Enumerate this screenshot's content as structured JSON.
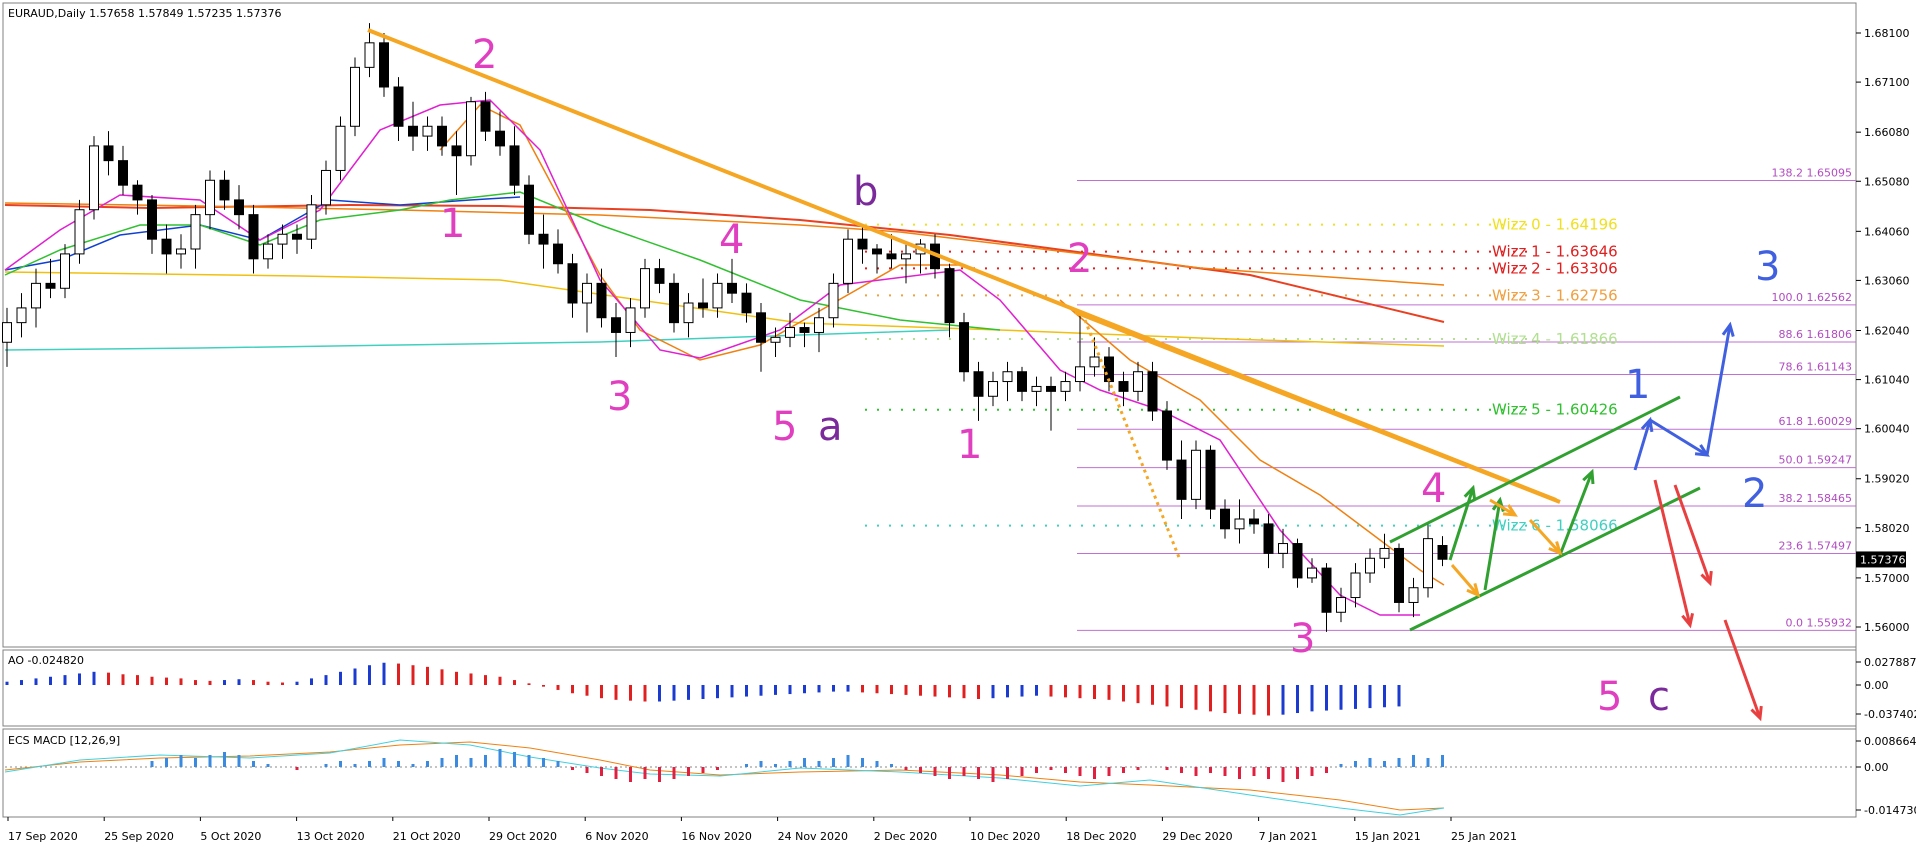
{
  "chart_data": {
    "type": "candlestick",
    "title": "EURAUD,Daily",
    "ohlc_header": "1.57658 1.57849 1.57235 1.57376",
    "last_price": "1.57376",
    "price_ticks": [
      "1.68100",
      "1.67100",
      "1.66080",
      "1.65080",
      "1.64060",
      "1.63060",
      "1.62040",
      "1.61040",
      "1.60040",
      "1.59020",
      "1.58020",
      "1.57000",
      "1.56000"
    ],
    "date_ticks": [
      "17 Sep 2020",
      "25 Sep 2020",
      "5 Oct 2020",
      "13 Oct 2020",
      "21 Oct 2020",
      "29 Oct 2020",
      "6 Nov 2020",
      "16 Nov 2020",
      "24 Nov 2020",
      "2 Dec 2020",
      "10 Dec 2020",
      "18 Dec 2020",
      "29 Dec 2020",
      "7 Jan 2021",
      "15 Jan 2021",
      "25 Jan 2021"
    ],
    "candles": [
      [
        1.618,
        1.625,
        1.613,
        1.622
      ],
      [
        1.622,
        1.628,
        1.619,
        1.625
      ],
      [
        1.625,
        1.633,
        1.621,
        1.63
      ],
      [
        1.63,
        1.635,
        1.627,
        1.629
      ],
      [
        1.629,
        1.638,
        1.627,
        1.636
      ],
      [
        1.636,
        1.647,
        1.634,
        1.645
      ],
      [
        1.645,
        1.66,
        1.643,
        1.658
      ],
      [
        1.658,
        1.661,
        1.652,
        1.655
      ],
      [
        1.655,
        1.658,
        1.648,
        1.65
      ],
      [
        1.65,
        1.651,
        1.644,
        1.647
      ],
      [
        1.647,
        1.648,
        1.636,
        1.639
      ],
      [
        1.639,
        1.642,
        1.632,
        1.636
      ],
      [
        1.636,
        1.64,
        1.633,
        1.637
      ],
      [
        1.637,
        1.646,
        1.633,
        1.644
      ],
      [
        1.644,
        1.653,
        1.641,
        1.651
      ],
      [
        1.651,
        1.653,
        1.645,
        1.647
      ],
      [
        1.647,
        1.65,
        1.641,
        1.644
      ],
      [
        1.644,
        1.646,
        1.632,
        1.635
      ],
      [
        1.635,
        1.64,
        1.633,
        1.638
      ],
      [
        1.638,
        1.642,
        1.635,
        1.64
      ],
      [
        1.64,
        1.642,
        1.636,
        1.639
      ],
      [
        1.639,
        1.648,
        1.637,
        1.646
      ],
      [
        1.646,
        1.655,
        1.644,
        1.653
      ],
      [
        1.653,
        1.664,
        1.651,
        1.662
      ],
      [
        1.662,
        1.676,
        1.66,
        1.674
      ],
      [
        1.674,
        1.683,
        1.672,
        1.679
      ],
      [
        1.679,
        1.681,
        1.668,
        1.67
      ],
      [
        1.67,
        1.672,
        1.659,
        1.662
      ],
      [
        1.662,
        1.667,
        1.657,
        1.66
      ],
      [
        1.66,
        1.664,
        1.657,
        1.662
      ],
      [
        1.662,
        1.664,
        1.656,
        1.658
      ],
      [
        1.658,
        1.661,
        1.648,
        1.656
      ],
      [
        1.656,
        1.668,
        1.654,
        1.667
      ],
      [
        1.667,
        1.669,
        1.659,
        1.661
      ],
      [
        1.661,
        1.665,
        1.656,
        1.658
      ],
      [
        1.658,
        1.662,
        1.648,
        1.65
      ],
      [
        1.65,
        1.652,
        1.638,
        1.64
      ],
      [
        1.64,
        1.644,
        1.633,
        1.638
      ],
      [
        1.638,
        1.641,
        1.632,
        1.634
      ],
      [
        1.634,
        1.636,
        1.623,
        1.626
      ],
      [
        1.626,
        1.632,
        1.62,
        1.63
      ],
      [
        1.63,
        1.633,
        1.621,
        1.623
      ],
      [
        1.623,
        1.626,
        1.615,
        1.62
      ],
      [
        1.62,
        1.627,
        1.617,
        1.625
      ],
      [
        1.625,
        1.635,
        1.623,
        1.633
      ],
      [
        1.633,
        1.635,
        1.628,
        1.63
      ],
      [
        1.63,
        1.632,
        1.62,
        1.622
      ],
      [
        1.622,
        1.628,
        1.619,
        1.626
      ],
      [
        1.626,
        1.631,
        1.623,
        1.625
      ],
      [
        1.625,
        1.632,
        1.623,
        1.63
      ],
      [
        1.63,
        1.635,
        1.626,
        1.628
      ],
      [
        1.628,
        1.63,
        1.622,
        1.624
      ],
      [
        1.624,
        1.626,
        1.612,
        1.618
      ],
      [
        1.618,
        1.621,
        1.615,
        1.619
      ],
      [
        1.619,
        1.624,
        1.617,
        1.621
      ],
      [
        1.621,
        1.622,
        1.617,
        1.62
      ],
      [
        1.62,
        1.625,
        1.616,
        1.623
      ],
      [
        1.623,
        1.632,
        1.621,
        1.63
      ],
      [
        1.63,
        1.641,
        1.628,
        1.639
      ],
      [
        1.639,
        1.642,
        1.634,
        1.637
      ],
      [
        1.637,
        1.638,
        1.632,
        1.636
      ],
      [
        1.636,
        1.64,
        1.633,
        1.635
      ],
      [
        1.635,
        1.638,
        1.63,
        1.636
      ],
      [
        1.636,
        1.639,
        1.632,
        1.638
      ],
      [
        1.638,
        1.64,
        1.631,
        1.633
      ],
      [
        1.633,
        1.634,
        1.619,
        1.622
      ],
      [
        1.622,
        1.624,
        1.61,
        1.612
      ],
      [
        1.612,
        1.614,
        1.602,
        1.607
      ],
      [
        1.607,
        1.612,
        1.605,
        1.61
      ],
      [
        1.61,
        1.614,
        1.606,
        1.612
      ],
      [
        1.612,
        1.613,
        1.606,
        1.608
      ],
      [
        1.608,
        1.611,
        1.605,
        1.609
      ],
      [
        1.609,
        1.611,
        1.6,
        1.608
      ],
      [
        1.608,
        1.612,
        1.606,
        1.61
      ],
      [
        1.61,
        1.624,
        1.608,
        1.613
      ],
      [
        1.613,
        1.619,
        1.611,
        1.615
      ],
      [
        1.615,
        1.617,
        1.608,
        1.61
      ],
      [
        1.61,
        1.612,
        1.605,
        1.608
      ],
      [
        1.608,
        1.614,
        1.606,
        1.612
      ],
      [
        1.612,
        1.614,
        1.602,
        1.604
      ],
      [
        1.604,
        1.606,
        1.592,
        1.594
      ],
      [
        1.594,
        1.598,
        1.582,
        1.586
      ],
      [
        1.586,
        1.598,
        1.584,
        1.596
      ],
      [
        1.596,
        1.597,
        1.582,
        1.584
      ],
      [
        1.584,
        1.586,
        1.578,
        1.58
      ],
      [
        1.58,
        1.586,
        1.577,
        1.582
      ],
      [
        1.582,
        1.584,
        1.579,
        1.581
      ],
      [
        1.581,
        1.583,
        1.572,
        1.575
      ],
      [
        1.575,
        1.58,
        1.572,
        1.577
      ],
      [
        1.577,
        1.578,
        1.568,
        1.57
      ],
      [
        1.57,
        1.574,
        1.569,
        1.572
      ],
      [
        1.572,
        1.573,
        1.559,
        1.563
      ],
      [
        1.563,
        1.568,
        1.561,
        1.566
      ],
      [
        1.566,
        1.573,
        1.564,
        1.571
      ],
      [
        1.571,
        1.576,
        1.569,
        1.574
      ],
      [
        1.574,
        1.579,
        1.572,
        1.576
      ],
      [
        1.576,
        1.577,
        1.563,
        1.565
      ],
      [
        1.565,
        1.57,
        1.562,
        1.568
      ],
      [
        1.568,
        1.581,
        1.566,
        1.578
      ],
      [
        1.5766,
        1.5785,
        1.5724,
        1.5738
      ]
    ],
    "fib_levels": [
      {
        "label": "138.2 1.65095",
        "value": 1.65095
      },
      {
        "label": "100.0 1.62562",
        "value": 1.62562
      },
      {
        "label": "88.6 1.61806",
        "value": 1.61806
      },
      {
        "label": "78.6 1.61143",
        "value": 1.61143
      },
      {
        "label": "61.8 1.60029",
        "value": 1.60029
      },
      {
        "label": "50.0 1.59247",
        "value": 1.59247
      },
      {
        "label": "38.2 1.58465",
        "value": 1.58465
      },
      {
        "label": "23.6 1.57497",
        "value": 1.57497
      },
      {
        "label": "0.0 1.55932",
        "value": 1.55932
      }
    ],
    "wizz_levels": [
      {
        "label": "Wizz 0 - 1.64196",
        "value": 1.64196,
        "color": "#f0e020"
      },
      {
        "label": "Wizz 1 - 1.63646",
        "value": 1.63646,
        "color": "#e02020"
      },
      {
        "label": "Wizz 2 - 1.63306",
        "value": 1.63306,
        "color": "#e02020"
      },
      {
        "label": "Wizz 3 - 1.62756",
        "value": 1.62756,
        "color": "#f0a040"
      },
      {
        "label": "Wizz 4 - 1.61866",
        "value": 1.61866,
        "color": "#b0e090"
      },
      {
        "label": "Wizz 5 - 1.60426",
        "value": 1.60426,
        "color": "#30c030"
      },
      {
        "label": "Wizz 6 - 1.58066",
        "value": 1.58066,
        "color": "#40d0c0"
      }
    ],
    "wave_labels": [
      "2",
      "1",
      "3",
      "4",
      "5",
      "a",
      "b",
      "2",
      "1",
      "3",
      "4",
      "5",
      "c",
      "1",
      "2",
      "3"
    ],
    "ao": {
      "label": "AO -0.024820",
      "ticks": [
        "0.027887",
        "0.00",
        "-0.037402"
      ]
    },
    "macd": {
      "label": "ECS MACD [12,26,9]",
      "ticks": [
        "0.0086644",
        "0.00",
        "-0.014730"
      ]
    }
  }
}
